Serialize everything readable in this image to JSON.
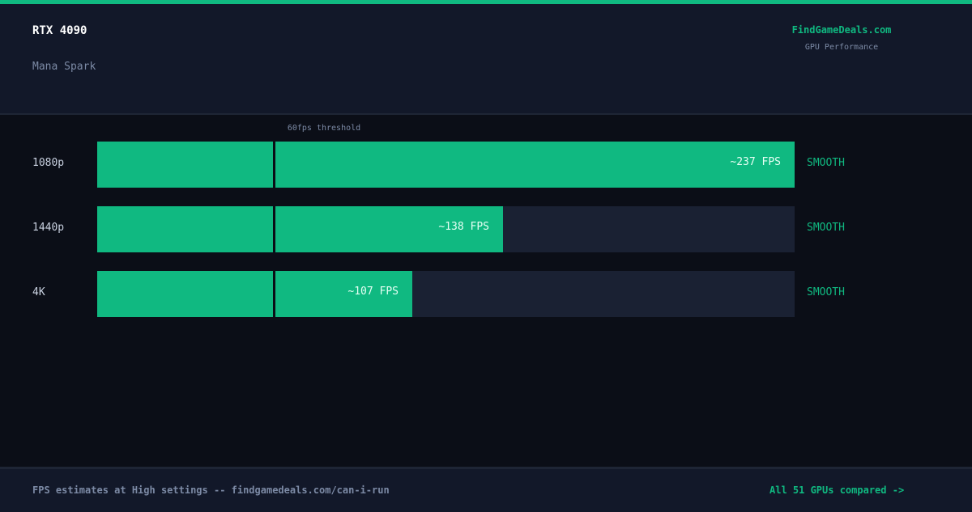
{
  "header": {
    "gpu": "RTX 4090",
    "game": "Mana Spark",
    "brand": "FindGameDeals.com",
    "brand_subtitle": "GPU Performance"
  },
  "chart_data": {
    "type": "bar",
    "orientation": "horizontal",
    "categories": [
      "1080p",
      "1440p",
      "4K"
    ],
    "values": [
      237,
      138,
      107
    ],
    "value_labels": [
      "~237 FPS",
      "~138 FPS",
      "~107 FPS"
    ],
    "verdicts": [
      "SMOOTH",
      "SMOOTH",
      "SMOOTH"
    ],
    "xlim": [
      0,
      237
    ],
    "threshold": {
      "value": 60,
      "label": "60fps threshold"
    },
    "grid": false,
    "colors": {
      "bar": "#10b981",
      "track": "#1a2133",
      "verdict": "#10b981"
    }
  },
  "footer": {
    "note": "FPS estimates at High settings -- findgamedeals.com/can-i-run",
    "link": "All 51 GPUs compared ->"
  }
}
